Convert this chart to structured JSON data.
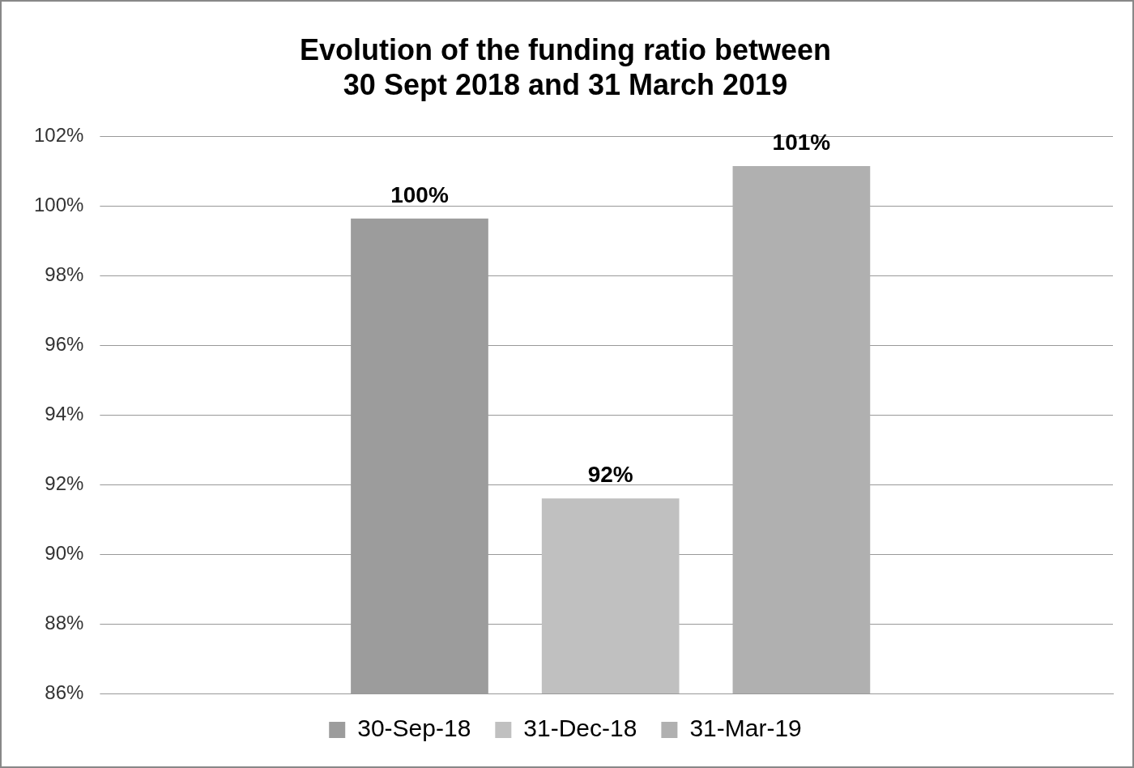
{
  "chart_data": {
    "type": "bar",
    "title": [
      "Evolution of the funding ratio between",
      "30 Sept 2018 and 31 March 2019"
    ],
    "categories": [
      null
    ],
    "series": [
      {
        "name": "30-Sep-18",
        "color": "#9c9c9c",
        "values": [
          99.64
        ],
        "value_labels": [
          "100%"
        ]
      },
      {
        "name": "31-Dec-18",
        "color": "#c0c0c0",
        "values": [
          91.6
        ],
        "value_labels": [
          "92%"
        ]
      },
      {
        "name": "31-Mar-19",
        "color": "#b0b0b0",
        "values": [
          101.15
        ],
        "value_labels": [
          "101%"
        ]
      }
    ],
    "ylim": [
      86,
      102
    ],
    "yticks": [
      {
        "value": 86,
        "label": "86%"
      },
      {
        "value": 88,
        "label": "88%"
      },
      {
        "value": 90,
        "label": "90%"
      },
      {
        "value": 92,
        "label": "92%"
      },
      {
        "value": 94,
        "label": "94%"
      },
      {
        "value": 96,
        "label": "96%"
      },
      {
        "value": 98,
        "label": "98%"
      },
      {
        "value": 100,
        "label": "100%"
      },
      {
        "value": 102,
        "label": "102%"
      }
    ],
    "grid": "y",
    "legend": "bottom"
  }
}
